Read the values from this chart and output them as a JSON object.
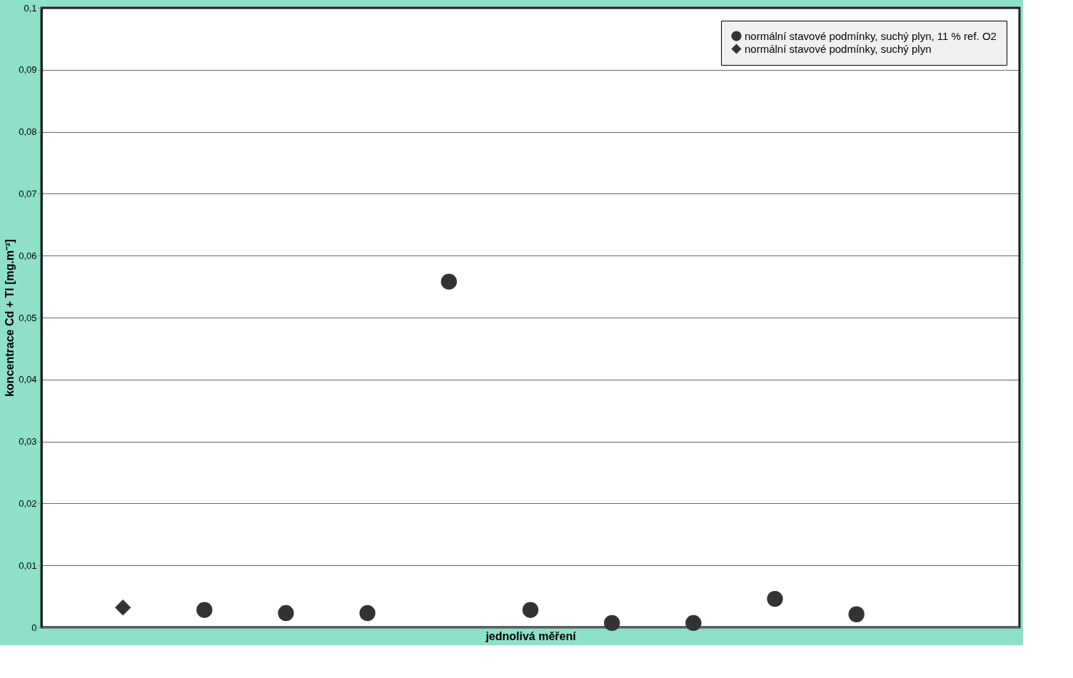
{
  "chart_data": {
    "type": "scatter",
    "xlabel": "jednolivá měření",
    "ylabel": "koncentrace Cd + Tl  [mg.m⁻³]",
    "categories": [
      null,
      null,
      null,
      null,
      null,
      null,
      null,
      null,
      null,
      null,
      null
    ],
    "series": [
      {
        "name": "normální stavové podmínky, suchý plyn, 11 % ref. O2",
        "color": "#333333",
        "marker": "circle",
        "values": [
          null,
          0.0028,
          0.0023,
          0.0023,
          0.0558,
          0.0028,
          0.0007,
          0.0007,
          0.0046,
          0.0021,
          null
        ]
      },
      {
        "name": "normální stavové podmínky, suchý plyn",
        "color": "#333333",
        "marker": "diamond",
        "values": [
          0.0032,
          null,
          null,
          null,
          null,
          null,
          null,
          null,
          null,
          null,
          null
        ]
      }
    ],
    "ylim": [
      0,
      0.1
    ],
    "yticks": [
      {
        "value": 0,
        "label": "0"
      },
      {
        "value": 0.01,
        "label": "0,01"
      },
      {
        "value": 0.02,
        "label": "0,02"
      },
      {
        "value": 0.03,
        "label": "0,03"
      },
      {
        "value": 0.04,
        "label": "0,04"
      },
      {
        "value": 0.05,
        "label": "0,05"
      },
      {
        "value": 0.06,
        "label": "0,06"
      },
      {
        "value": 0.07,
        "label": "0,07"
      },
      {
        "value": 0.08,
        "label": "0,08"
      },
      {
        "value": 0.09,
        "label": "0,09"
      },
      {
        "value": 0.1,
        "label": "0,1"
      }
    ],
    "grid": "y",
    "legend": "top right",
    "tick_labels": "y"
  }
}
